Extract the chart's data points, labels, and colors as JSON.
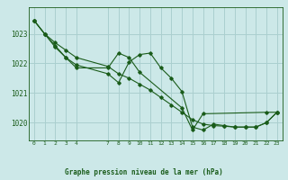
{
  "bg_color": "#cce8e8",
  "grid_color": "#aacfcf",
  "line_color": "#1a5c1a",
  "title": "Graphe pression niveau de la mer (hPa)",
  "ylim": [
    1019.4,
    1023.9
  ],
  "xlim": [
    -0.5,
    23.5
  ],
  "yticks": [
    1020,
    1021,
    1022,
    1023
  ],
  "xticks": [
    0,
    1,
    2,
    3,
    4,
    7,
    8,
    9,
    10,
    11,
    12,
    13,
    14,
    15,
    16,
    17,
    18,
    19,
    20,
    21,
    22,
    23
  ],
  "line1_x": [
    0,
    1,
    2,
    3,
    4,
    7,
    8,
    9,
    10,
    11,
    12,
    13,
    14,
    15,
    16,
    17,
    18,
    19,
    20,
    21,
    22,
    23
  ],
  "line1_y": [
    1023.45,
    1023.0,
    1022.55,
    1022.2,
    1021.95,
    1021.65,
    1021.35,
    1022.05,
    1022.3,
    1022.35,
    1021.85,
    1021.5,
    1021.05,
    1019.85,
    1019.75,
    1019.95,
    1019.9,
    1019.85,
    1019.85,
    1019.85,
    1020.0,
    1020.35
  ],
  "line2_x": [
    0,
    1,
    2,
    3,
    4,
    7,
    8,
    9,
    10,
    11,
    12,
    13,
    14,
    15,
    16,
    17,
    18,
    19,
    20,
    21,
    22,
    23
  ],
  "line2_y": [
    1023.45,
    1023.0,
    1022.7,
    1022.45,
    1022.2,
    1021.9,
    1021.65,
    1021.5,
    1021.3,
    1021.1,
    1020.85,
    1020.6,
    1020.35,
    1020.1,
    1019.95,
    1019.9,
    1019.88,
    1019.85,
    1019.85,
    1019.85,
    1020.0,
    1020.35
  ],
  "line3_x": [
    0,
    1,
    2,
    3,
    4,
    7,
    8,
    9,
    10,
    14,
    15,
    16,
    22,
    23
  ],
  "line3_y": [
    1023.45,
    1023.0,
    1022.6,
    1022.2,
    1021.85,
    1021.85,
    1022.35,
    1022.2,
    1021.7,
    1020.5,
    1019.75,
    1020.3,
    1020.35,
    1020.35
  ]
}
